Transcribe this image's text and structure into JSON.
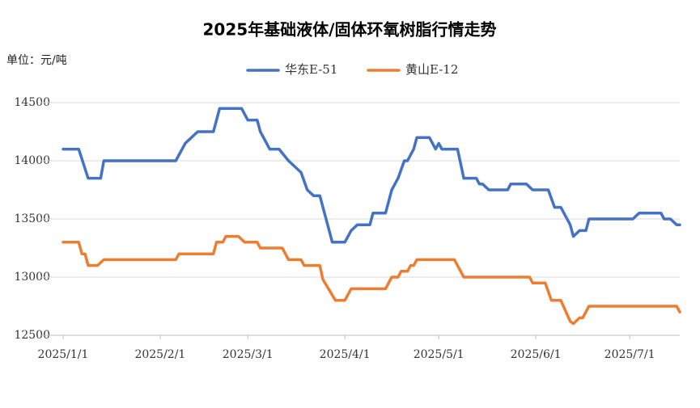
{
  "chart_data": {
    "type": "line",
    "title": "2025年基础液体/固体环氧树脂行情走势",
    "unit_label": "单位：元/吨",
    "legend": "top",
    "grid": true,
    "xlim": [
      "2025/1/1",
      "2025/7/17"
    ],
    "xticks": [
      "2025/1/1",
      "2025/2/1",
      "2025/3/1",
      "2025/4/1",
      "2025/5/1",
      "2025/6/1",
      "2025/7/1"
    ],
    "ylim": [
      12500,
      14500
    ],
    "yticks": [
      12500,
      13000,
      13500,
      14000,
      14500
    ],
    "series": [
      {
        "name": "华东E-51",
        "color": "#4472c4",
        "x": [
          "2025/1/1",
          "2025/1/6",
          "2025/1/9",
          "2025/1/13",
          "2025/1/14",
          "2025/2/6",
          "2025/2/9",
          "2025/2/11",
          "2025/2/13",
          "2025/2/18",
          "2025/2/20",
          "2025/2/27",
          "2025/3/1",
          "2025/3/4",
          "2025/3/5",
          "2025/3/8",
          "2025/3/11",
          "2025/3/14",
          "2025/3/18",
          "2025/3/20",
          "2025/3/22",
          "2025/3/24",
          "2025/3/27",
          "2025/3/28",
          "2025/4/1",
          "2025/4/3",
          "2025/4/5",
          "2025/4/9",
          "2025/4/10",
          "2025/4/14",
          "2025/4/16",
          "2025/4/18",
          "2025/4/20",
          "2025/4/21",
          "2025/4/23",
          "2025/4/24",
          "2025/4/28",
          "2025/4/30",
          "2025/5/1",
          "2025/5/2",
          "2025/5/7",
          "2025/5/9",
          "2025/5/13",
          "2025/5/14",
          "2025/5/15",
          "2025/5/17",
          "2025/5/23",
          "2025/5/24",
          "2025/5/29",
          "2025/5/31",
          "2025/6/5",
          "2025/6/7",
          "2025/6/9",
          "2025/6/12",
          "2025/6/13",
          "2025/6/15",
          "2025/6/17",
          "2025/6/18",
          "2025/7/2",
          "2025/7/4",
          "2025/7/11",
          "2025/7/12",
          "2025/7/14",
          "2025/7/16",
          "2025/7/17"
        ],
        "values": [
          14100,
          14100,
          13850,
          13850,
          14000,
          14000,
          14150,
          14200,
          14250,
          14250,
          14450,
          14450,
          14350,
          14350,
          14250,
          14100,
          14100,
          14000,
          13900,
          13750,
          13700,
          13700,
          13400,
          13300,
          13300,
          13400,
          13450,
          13450,
          13550,
          13550,
          13750,
          13850,
          14000,
          14000,
          14100,
          14200,
          14200,
          14100,
          14150,
          14100,
          14100,
          13850,
          13850,
          13800,
          13800,
          13750,
          13750,
          13800,
          13800,
          13750,
          13750,
          13600,
          13600,
          13450,
          13350,
          13400,
          13400,
          13500,
          13500,
          13550,
          13550,
          13500,
          13500,
          13450,
          13450
        ]
      },
      {
        "name": "黄山E-12",
        "color": "#ed7d31",
        "x": [
          "2025/1/1",
          "2025/1/6",
          "2025/1/7",
          "2025/1/8",
          "2025/1/9",
          "2025/1/12",
          "2025/1/14",
          "2025/2/6",
          "2025/2/7",
          "2025/2/18",
          "2025/2/19",
          "2025/2/21",
          "2025/2/22",
          "2025/2/26",
          "2025/2/28",
          "2025/3/4",
          "2025/3/5",
          "2025/3/12",
          "2025/3/14",
          "2025/3/18",
          "2025/3/19",
          "2025/3/24",
          "2025/3/25",
          "2025/3/29",
          "2025/4/1",
          "2025/4/3",
          "2025/4/14",
          "2025/4/16",
          "2025/4/18",
          "2025/4/19",
          "2025/4/21",
          "2025/4/22",
          "2025/4/23",
          "2025/4/24",
          "2025/5/6",
          "2025/5/9",
          "2025/5/30",
          "2025/5/31",
          "2025/6/4",
          "2025/6/6",
          "2025/6/9",
          "2025/6/12",
          "2025/6/13",
          "2025/6/15",
          "2025/6/16",
          "2025/6/18",
          "2025/7/16",
          "2025/7/17"
        ],
        "values": [
          13300,
          13300,
          13200,
          13200,
          13100,
          13100,
          13150,
          13150,
          13200,
          13200,
          13300,
          13300,
          13350,
          13350,
          13300,
          13300,
          13250,
          13250,
          13150,
          13150,
          13100,
          13100,
          12980,
          12800,
          12800,
          12900,
          12900,
          13000,
          13000,
          13050,
          13050,
          13100,
          13100,
          13150,
          13150,
          13000,
          13000,
          12950,
          12950,
          12800,
          12800,
          12620,
          12600,
          12650,
          12650,
          12750,
          12750,
          12700
        ]
      }
    ]
  }
}
